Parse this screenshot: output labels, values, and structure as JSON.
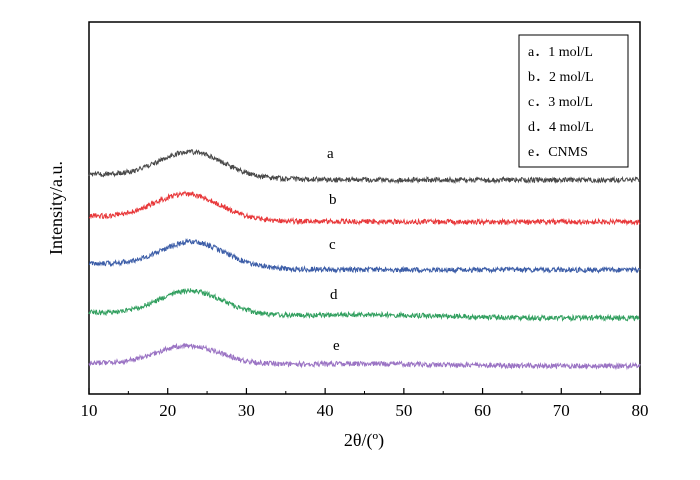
{
  "chart_data": {
    "type": "line",
    "xlabel": "2θ/(º)",
    "ylabel": "Intensity/a.u.",
    "xlim": [
      10,
      80
    ],
    "x_ticks": [
      10,
      20,
      30,
      40,
      50,
      60,
      70,
      80
    ],
    "y_ticks_labeled": false,
    "grid": false,
    "legend_position": "top-right",
    "legend_entries": [
      "a．1 mol/L",
      "b．2 mol/L",
      "c．3 mol/L",
      "d．4 mol/L",
      "e．CNMS"
    ],
    "series": [
      {
        "label": "a",
        "color": "#4a4a4a",
        "peak_x": 22.8,
        "peak_height": 28,
        "edge_height": 10,
        "tail_height": 0,
        "baseline": 0.0,
        "x": [
          10,
          15,
          20,
          22.8,
          25,
          30,
          35,
          40,
          50,
          60,
          70,
          80
        ]
      },
      {
        "label": "b",
        "color": "#e8393b",
        "peak_x": 22.3,
        "peak_height": 28,
        "edge_height": 10,
        "tail_height": 0,
        "baseline": 0.0,
        "x": [
          10,
          15,
          20,
          22.3,
          25,
          30,
          35,
          40,
          50,
          60,
          70,
          80
        ]
      },
      {
        "label": "c",
        "color": "#3d5ea8",
        "peak_x": 23.0,
        "peak_height": 28,
        "edge_height": 12,
        "tail_height": 0,
        "baseline": 0.0,
        "x": [
          10,
          15,
          20,
          23.0,
          25,
          30,
          35,
          40,
          50,
          60,
          70,
          80
        ]
      },
      {
        "label": "d",
        "color": "#33a060",
        "peak_x": 22.8,
        "peak_height": 27,
        "edge_height": 9,
        "tail_height": 3,
        "baseline": 0.0,
        "x": [
          10,
          15,
          20,
          22.8,
          25,
          30,
          35,
          40,
          50,
          60,
          70,
          80
        ]
      },
      {
        "label": "e",
        "color": "#9b74c4",
        "peak_x": 22.5,
        "peak_height": 20,
        "edge_height": 5,
        "tail_height": 2,
        "baseline": 0.0,
        "x": [
          10,
          15,
          20,
          22.5,
          25,
          30,
          35,
          40,
          50,
          60,
          70,
          80
        ]
      }
    ]
  }
}
